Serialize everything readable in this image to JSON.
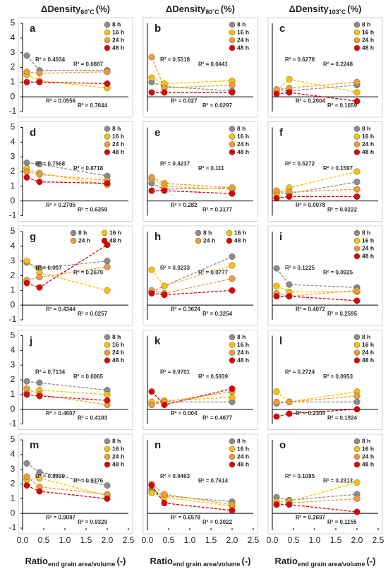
{
  "column_titles": [
    {
      "main": "ΔDensity",
      "sub": "60˚C",
      "unit": "(%)"
    },
    {
      "main": "ΔDensity",
      "sub": "80˚C",
      "unit": "(%)"
    },
    {
      "main": "ΔDensity",
      "sub": "103˚C",
      "unit": "(%)"
    }
  ],
  "x_axis_label": {
    "main": "Ratio",
    "sub": "end grain area/volume",
    "unit": "(-)"
  },
  "chart_data": [
    {
      "type": "scatter",
      "label": "a",
      "x": [
        0.1,
        0.4,
        2.0
      ],
      "xlim": [
        0,
        2.5
      ],
      "ylim": [
        -1,
        5
      ],
      "yticks": [
        -1,
        0,
        1,
        2,
        3,
        4,
        5
      ],
      "legend": "top-right",
      "legend_columns": 1,
      "series": [
        {
          "name": "8 h",
          "color": "#8c8c8c",
          "values": [
            2.8,
            1.8,
            1.8
          ]
        },
        {
          "name": "16 h",
          "color": "#ffc000",
          "values": [
            1.5,
            1.1,
            0.6
          ]
        },
        {
          "name": "24 h",
          "color": "#f39c33",
          "values": [
            1.7,
            1.6,
            1.7
          ]
        },
        {
          "name": "48 h",
          "color": "#e00000",
          "values": [
            1.0,
            1.0,
            0.9
          ]
        }
      ],
      "annotations": [
        "R² = 0.4034",
        "R² = 0.0887",
        "R² = 0.0556",
        "R² = 0.7644"
      ]
    },
    {
      "type": "scatter",
      "label": "b",
      "x": [
        0.1,
        0.4,
        2.0
      ],
      "xlim": [
        0,
        2.5
      ],
      "ylim": [
        -1,
        5
      ],
      "legend": "top-right",
      "legend_columns": 1,
      "series": [
        {
          "name": "8 h",
          "color": "#8c8c8c",
          "values": [
            1.0,
            0.7,
            0.4
          ]
        },
        {
          "name": "16 h",
          "color": "#ffc000",
          "values": [
            1.3,
            0.9,
            1.1
          ]
        },
        {
          "name": "24 h",
          "color": "#f39c33",
          "values": [
            2.7,
            0.6,
            0.8
          ]
        },
        {
          "name": "48 h",
          "color": "#e00000",
          "values": [
            0.3,
            0.3,
            0.3
          ]
        }
      ],
      "annotations": [
        "R² = 0.5518",
        "R² = 0.0441",
        "R² = 0.027",
        "R² = 0.0297"
      ]
    },
    {
      "type": "scatter",
      "label": "c",
      "x": [
        0.1,
        0.4,
        2.0
      ],
      "xlim": [
        0,
        2.5
      ],
      "ylim": [
        -1,
        5
      ],
      "legend": "top-right",
      "legend_columns": 1,
      "series": [
        {
          "name": "8 h",
          "color": "#8c8c8c",
          "values": [
            0.5,
            0.4,
            0.8
          ]
        },
        {
          "name": "16 h",
          "color": "#ffc000",
          "values": [
            0.4,
            1.2,
            0.3
          ]
        },
        {
          "name": "24 h",
          "color": "#f39c33",
          "values": [
            0.5,
            0.6,
            1.0
          ]
        },
        {
          "name": "48 h",
          "color": "#e00000",
          "values": [
            0.2,
            0.3,
            -0.3
          ]
        }
      ],
      "annotations": [
        "R² = 0.6278",
        "R² = 0.2248",
        "R² = 0.2004",
        "R² = 0.1659"
      ]
    },
    {
      "type": "scatter",
      "label": "d",
      "x": [
        0.1,
        0.4,
        2.0
      ],
      "xlim": [
        0,
        2.5
      ],
      "ylim": [
        -1,
        5
      ],
      "yticks": [
        -1,
        0,
        1,
        2,
        3,
        4,
        5
      ],
      "legend": "top-right",
      "legend_columns": 1,
      "series": [
        {
          "name": "8 h",
          "color": "#8c8c8c",
          "values": [
            2.6,
            2.5,
            1.7
          ]
        },
        {
          "name": "16 h",
          "color": "#ffc000",
          "values": [
            2.2,
            1.9,
            1.1
          ]
        },
        {
          "name": "24 h",
          "color": "#f39c33",
          "values": [
            2.0,
            1.8,
            1.4
          ]
        },
        {
          "name": "48 h",
          "color": "#e00000",
          "values": [
            1.6,
            1.3,
            1.2
          ]
        }
      ],
      "annotations": [
        "R² = 0.7568",
        "R² = 0.8718",
        "R² = 0.2705",
        "R² = 0.6359"
      ]
    },
    {
      "type": "scatter",
      "label": "e",
      "x": [
        0.1,
        0.4,
        2.0
      ],
      "xlim": [
        0,
        2.5
      ],
      "ylim": [
        -1,
        5
      ],
      "legend": "top-right",
      "legend_columns": 1,
      "series": [
        {
          "name": "8 h",
          "color": "#8c8c8c",
          "values": [
            1.2,
            0.8,
            0.9
          ]
        },
        {
          "name": "16 h",
          "color": "#ffc000",
          "values": [
            1.5,
            1.0,
            0.8
          ]
        },
        {
          "name": "24 h",
          "color": "#f39c33",
          "values": [
            1.6,
            1.2,
            0.9
          ]
        },
        {
          "name": "48 h",
          "color": "#e00000",
          "values": [
            0.7,
            0.7,
            0.5
          ]
        }
      ],
      "annotations": [
        "R² = 0.4237",
        "R² = 0.111",
        "R² = 0.282",
        "R² = 0.3177"
      ]
    },
    {
      "type": "scatter",
      "label": "f",
      "x": [
        0.1,
        0.4,
        2.0
      ],
      "xlim": [
        0,
        2.5
      ],
      "ylim": [
        -1,
        5
      ],
      "legend": "top-right",
      "legend_columns": 1,
      "series": [
        {
          "name": "8 h",
          "color": "#8c8c8c",
          "values": [
            0.6,
            0.5,
            1.3
          ]
        },
        {
          "name": "16 h",
          "color": "#ffc000",
          "values": [
            0.5,
            0.9,
            2.0
          ]
        },
        {
          "name": "24 h",
          "color": "#f39c33",
          "values": [
            0.7,
            0.6,
            0.8
          ]
        },
        {
          "name": "48 h",
          "color": "#e00000",
          "values": [
            0.2,
            0.3,
            0.3
          ]
        }
      ],
      "annotations": [
        "R² = 0.5272",
        "R² = 0.1597",
        "R² = 0.0078",
        "R² = 0.0222"
      ]
    },
    {
      "type": "scatter",
      "label": "g",
      "x": [
        0.1,
        0.4,
        2.0
      ],
      "xlim": [
        0,
        2.5
      ],
      "ylim": [
        -1,
        5
      ],
      "yticks": [
        -1,
        0,
        1,
        2,
        3,
        4,
        5
      ],
      "legend": "top-right",
      "legend_columns": 2,
      "series": [
        {
          "name": "8 h",
          "color": "#8c8c8c",
          "values": [
            2.9,
            2.5,
            3.0
          ]
        },
        {
          "name": "16 h",
          "color": "#ffc000",
          "values": [
            3.0,
            2.2,
            1.0
          ]
        },
        {
          "name": "24 h",
          "color": "#f39c33",
          "values": [
            1.7,
            1.9,
            2.6
          ]
        },
        {
          "name": "48 h",
          "color": "#e00000",
          "values": [
            1.5,
            1.2,
            4.1
          ]
        }
      ],
      "annotations": [
        "R² = 0.007",
        "R² = 0.2679",
        "R² = 0.4344",
        "R² = 0.0257"
      ]
    },
    {
      "type": "scatter",
      "label": "h",
      "x": [
        0.1,
        0.4,
        2.0
      ],
      "xlim": [
        0,
        2.5
      ],
      "ylim": [
        -1,
        5
      ],
      "legend": "top-right",
      "legend_columns": 2,
      "series": [
        {
          "name": "8 h",
          "color": "#8c8c8c",
          "values": [
            0.9,
            1.3,
            3.3
          ]
        },
        {
          "name": "16 h",
          "color": "#ffc000",
          "values": [
            2.4,
            1.3,
            2.7
          ]
        },
        {
          "name": "24 h",
          "color": "#f39c33",
          "values": [
            1.0,
            0.8,
            1.8
          ]
        },
        {
          "name": "48 h",
          "color": "#e00000",
          "values": [
            0.8,
            0.7,
            1.0
          ]
        }
      ],
      "annotations": [
        "R² = 0.0233",
        "R² = 0.0777",
        "R² = 0.3624",
        "R² = 0.3254"
      ]
    },
    {
      "type": "scatter",
      "label": "i",
      "x": [
        0.1,
        0.4,
        2.0
      ],
      "xlim": [
        0,
        2.5
      ],
      "ylim": [
        -1,
        5
      ],
      "legend": "top-right",
      "legend_columns": 1,
      "series": [
        {
          "name": "8 h",
          "color": "#8c8c8c",
          "values": [
            2.5,
            1.4,
            1.2
          ]
        },
        {
          "name": "16 h",
          "color": "#ffc000",
          "values": [
            1.3,
            0.9,
            0.9
          ]
        },
        {
          "name": "24 h",
          "color": "#f39c33",
          "values": [
            0.8,
            0.6,
            1.0
          ]
        },
        {
          "name": "48 h",
          "color": "#e00000",
          "values": [
            0.6,
            0.6,
            0.3
          ]
        }
      ],
      "annotations": [
        "R² = 0.1225",
        "R² = 0.0925",
        "R² = 0.4072",
        "R² = 0.2595"
      ]
    },
    {
      "type": "scatter",
      "label": "j",
      "x": [
        0.1,
        0.4,
        2.0
      ],
      "xlim": [
        0,
        2.5
      ],
      "ylim": [
        -1,
        5
      ],
      "yticks": [
        -1,
        0,
        1,
        2,
        3,
        4,
        5
      ],
      "legend": "top-right",
      "legend_columns": 1,
      "series": [
        {
          "name": "8 h",
          "color": "#8c8c8c",
          "values": [
            1.9,
            1.8,
            1.3
          ]
        },
        {
          "name": "16 h",
          "color": "#ffc000",
          "values": [
            1.1,
            1.3,
            1.0
          ]
        },
        {
          "name": "24 h",
          "color": "#f39c33",
          "values": [
            1.4,
            1.0,
            0.3
          ]
        },
        {
          "name": "48 h",
          "color": "#e00000",
          "values": [
            1.0,
            0.9,
            0.6
          ]
        }
      ],
      "annotations": [
        "R² = 0.7134",
        "R² = 0.0065",
        "R² = 0.4607",
        "R² = 0.4183"
      ]
    },
    {
      "type": "scatter",
      "label": "k",
      "x": [
        0.1,
        0.4,
        2.0
      ],
      "xlim": [
        0,
        2.5
      ],
      "ylim": [
        -1,
        5
      ],
      "legend": "top-right",
      "legend_columns": 1,
      "series": [
        {
          "name": "8 h",
          "color": "#8c8c8c",
          "values": [
            0.4,
            0.5,
            0.5
          ]
        },
        {
          "name": "16 h",
          "color": "#ffc000",
          "values": [
            0.5,
            0.6,
            0.8
          ]
        },
        {
          "name": "24 h",
          "color": "#f39c33",
          "values": [
            0.3,
            0.5,
            1.2
          ]
        },
        {
          "name": "48 h",
          "color": "#e00000",
          "values": [
            1.2,
            0.3,
            1.4
          ]
        }
      ],
      "annotations": [
        "R² = 0.0701",
        "R² = 0.5939",
        "R² = 0.004",
        "R² = 0.4677"
      ]
    },
    {
      "type": "scatter",
      "label": "l",
      "x": [
        0.1,
        0.4,
        2.0
      ],
      "xlim": [
        0,
        2.5
      ],
      "ylim": [
        -1,
        5
      ],
      "legend": "top-right",
      "legend_columns": 1,
      "series": [
        {
          "name": "8 h",
          "color": "#8c8c8c",
          "values": [
            0.4,
            0.5,
            0.5
          ]
        },
        {
          "name": "16 h",
          "color": "#ffc000",
          "values": [
            1.2,
            0.5,
            1.2
          ]
        },
        {
          "name": "24 h",
          "color": "#f39c33",
          "values": [
            0.5,
            0.5,
            0.9
          ]
        },
        {
          "name": "48 h",
          "color": "#e00000",
          "values": [
            -0.5,
            -0.3,
            0.0
          ]
        }
      ],
      "annotations": [
        "R² = 0.2724",
        "R² = 0.0953",
        "R² = 0.2305",
        "R² = 0.1924"
      ]
    },
    {
      "type": "scatter",
      "label": "m",
      "x": [
        0.1,
        0.4,
        2.0
      ],
      "xlim": [
        0,
        2.5
      ],
      "ylim": [
        -1,
        5
      ],
      "yticks": [
        -1,
        0,
        1,
        2,
        3,
        4,
        5
      ],
      "xticks": [
        {
          "value": 0,
          "label": "0.0"
        },
        {
          "value": 0.5,
          "label": "0.5"
        },
        {
          "value": 1,
          "label": "1.0"
        },
        {
          "value": 1.5,
          "label": "1.5"
        },
        {
          "value": 2,
          "label": "2.0"
        },
        2.5
      ],
      "legend": "top-right",
      "legend_columns": 1,
      "series": [
        {
          "name": "8 h",
          "color": "#8c8c8c",
          "values": [
            3.4,
            2.8,
            1.9
          ]
        },
        {
          "name": "16 h",
          "color": "#ffc000",
          "values": [
            2.3,
            2.4,
            1.2
          ]
        },
        {
          "name": "24 h",
          "color": "#f39c33",
          "values": [
            2.5,
            1.8,
            1.3
          ]
        },
        {
          "name": "48 h",
          "color": "#e00000",
          "values": [
            1.9,
            1.5,
            1.0
          ]
        }
      ],
      "annotations": [
        "R² = 0.8839",
        "R² = 0.9376",
        "R² = 0.9097",
        "R² = 0.9329"
      ]
    },
    {
      "type": "scatter",
      "label": "n",
      "x": [
        0.1,
        0.4,
        2.0
      ],
      "xlim": [
        0,
        2.5
      ],
      "ylim": [
        -1,
        5
      ],
      "xticks": [
        {
          "value": 0,
          "label": "0.0"
        },
        {
          "value": 0.5,
          "label": "0.5"
        },
        {
          "value": 1,
          "label": "1.0"
        },
        {
          "value": 1.5,
          "label": "1.5"
        },
        {
          "value": 2,
          "label": "2.0"
        },
        2.5
      ],
      "legend": "top-right",
      "legend_columns": 1,
      "series": [
        {
          "name": "8 h",
          "color": "#8c8c8c",
          "values": [
            1.6,
            1.2,
            0.8
          ]
        },
        {
          "name": "16 h",
          "color": "#ffc000",
          "values": [
            1.4,
            1.1,
            0.5
          ]
        },
        {
          "name": "24 h",
          "color": "#f39c33",
          "values": [
            2.0,
            1.3,
            0.6
          ]
        },
        {
          "name": "48 h",
          "color": "#e00000",
          "values": [
            1.9,
            0.7,
            0.2
          ]
        }
      ],
      "annotations": [
        "R² = 0.9463",
        "R² = 0.7614",
        "R² = 0.6578",
        "R² = 0.3022"
      ]
    },
    {
      "type": "scatter",
      "label": "o",
      "x": [
        0.1,
        0.4,
        2.0
      ],
      "xlim": [
        0,
        2.5
      ],
      "ylim": [
        -1,
        5
      ],
      "xticks": [
        {
          "value": 0,
          "label": "0.0"
        },
        {
          "value": 0.5,
          "label": "0.5"
        },
        {
          "value": 1,
          "label": "1.0"
        },
        {
          "value": 1.5,
          "label": "1.5"
        },
        {
          "value": 2,
          "label": "2.0"
        },
        2.5
      ],
      "legend": "top-right",
      "legend_columns": 1,
      "series": [
        {
          "name": "8 h",
          "color": "#8c8c8c",
          "values": [
            1.1,
            0.9,
            1.3
          ]
        },
        {
          "name": "16 h",
          "color": "#ffc000",
          "values": [
            0.8,
            0.8,
            2.1
          ]
        },
        {
          "name": "24 h",
          "color": "#f39c33",
          "values": [
            0.6,
            0.7,
            1.0
          ]
        },
        {
          "name": "48 h",
          "color": "#e00000",
          "values": [
            0.6,
            0.6,
            0.1
          ]
        }
      ],
      "annotations": [
        "R² = 0.1085",
        "R² = 0.2313",
        "R² = 0.2697",
        "R² = 0.1155"
      ]
    }
  ]
}
